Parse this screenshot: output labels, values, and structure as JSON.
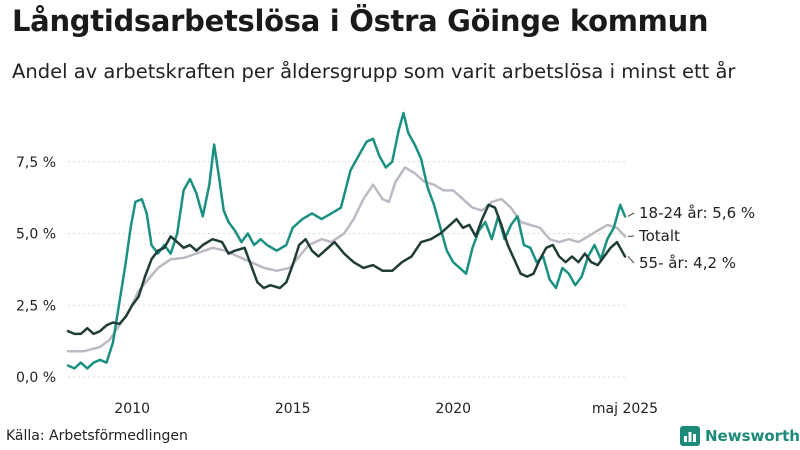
{
  "header": {
    "title": "Långtidsarbetslösa i Östra Göinge kommun",
    "subtitle": "Andel av arbetskraften per åldersgrupp som varit arbetslösa i minst ett år"
  },
  "footer": {
    "source": "Källa: Arbetsförmedlingen",
    "brand": "Newsworthy"
  },
  "chart_data": {
    "type": "line",
    "title": "Långtidsarbetslösa i Östra Göinge kommun",
    "subtitle": "Andel av arbetskraften per åldersgrupp som varit arbetslösa i minst ett år",
    "xlabel": "",
    "ylabel": "",
    "xlim": [
      2008.0,
      2025.35
    ],
    "ylim": [
      0,
      10
    ],
    "grid": true,
    "x_ticks": [
      {
        "value": 2010,
        "label": "2010"
      },
      {
        "value": 2015,
        "label": "2015"
      },
      {
        "value": 2020,
        "label": "2020"
      },
      {
        "value": 2025.35,
        "label": "maj 2025"
      }
    ],
    "y_ticks": [
      {
        "value": 0,
        "label": "0,0 %"
      },
      {
        "value": 2.5,
        "label": "2,5 %"
      },
      {
        "value": 5,
        "label": "5,0 %"
      },
      {
        "value": 7.5,
        "label": "7,5 %"
      }
    ],
    "series": [
      {
        "name": "Totalt",
        "end_label": "Totalt",
        "color": "#bdb9c4",
        "points": [
          [
            2008.0,
            0.9
          ],
          [
            2008.5,
            0.9
          ],
          [
            2009.0,
            1.05
          ],
          [
            2009.3,
            1.3
          ],
          [
            2009.6,
            1.8
          ],
          [
            2009.9,
            2.3
          ],
          [
            2010.2,
            3.0
          ],
          [
            2010.5,
            3.4
          ],
          [
            2010.8,
            3.8
          ],
          [
            2011.2,
            4.1
          ],
          [
            2011.6,
            4.15
          ],
          [
            2012.0,
            4.3
          ],
          [
            2012.5,
            4.5
          ],
          [
            2012.9,
            4.4
          ],
          [
            2013.3,
            4.2
          ],
          [
            2013.7,
            4.0
          ],
          [
            2014.1,
            3.8
          ],
          [
            2014.5,
            3.7
          ],
          [
            2014.9,
            3.8
          ],
          [
            2015.2,
            4.2
          ],
          [
            2015.5,
            4.6
          ],
          [
            2015.9,
            4.8
          ],
          [
            2016.2,
            4.7
          ],
          [
            2016.6,
            5.0
          ],
          [
            2016.9,
            5.5
          ],
          [
            2017.2,
            6.2
          ],
          [
            2017.5,
            6.7
          ],
          [
            2017.8,
            6.2
          ],
          [
            2018.0,
            6.1
          ],
          [
            2018.2,
            6.8
          ],
          [
            2018.5,
            7.3
          ],
          [
            2018.8,
            7.1
          ],
          [
            2019.1,
            6.8
          ],
          [
            2019.4,
            6.7
          ],
          [
            2019.7,
            6.5
          ],
          [
            2020.0,
            6.5
          ],
          [
            2020.3,
            6.2
          ],
          [
            2020.6,
            5.9
          ],
          [
            2020.9,
            5.8
          ],
          [
            2021.2,
            6.1
          ],
          [
            2021.5,
            6.2
          ],
          [
            2021.8,
            5.9
          ],
          [
            2022.1,
            5.4
          ],
          [
            2022.4,
            5.3
          ],
          [
            2022.7,
            5.2
          ],
          [
            2023.0,
            4.8
          ],
          [
            2023.3,
            4.7
          ],
          [
            2023.6,
            4.8
          ],
          [
            2023.9,
            4.7
          ],
          [
            2024.2,
            4.9
          ],
          [
            2024.5,
            5.1
          ],
          [
            2024.8,
            5.3
          ],
          [
            2025.1,
            5.2
          ],
          [
            2025.35,
            4.9
          ]
        ]
      },
      {
        "name": "18-24 år",
        "end_label": "18-24 år: 5,6 %",
        "color": "#1a9080",
        "points": [
          [
            2008.0,
            0.4
          ],
          [
            2008.2,
            0.3
          ],
          [
            2008.4,
            0.5
          ],
          [
            2008.6,
            0.3
          ],
          [
            2008.8,
            0.5
          ],
          [
            2009.0,
            0.6
          ],
          [
            2009.2,
            0.5
          ],
          [
            2009.4,
            1.2
          ],
          [
            2009.6,
            2.6
          ],
          [
            2009.8,
            4.0
          ],
          [
            2009.95,
            5.2
          ],
          [
            2010.1,
            6.1
          ],
          [
            2010.3,
            6.2
          ],
          [
            2010.45,
            5.7
          ],
          [
            2010.6,
            4.6
          ],
          [
            2010.8,
            4.3
          ],
          [
            2011.0,
            4.6
          ],
          [
            2011.2,
            4.3
          ],
          [
            2011.4,
            5.0
          ],
          [
            2011.6,
            6.5
          ],
          [
            2011.8,
            6.9
          ],
          [
            2012.0,
            6.4
          ],
          [
            2012.2,
            5.6
          ],
          [
            2012.4,
            6.7
          ],
          [
            2012.55,
            8.1
          ],
          [
            2012.7,
            7.0
          ],
          [
            2012.85,
            5.8
          ],
          [
            2013.0,
            5.4
          ],
          [
            2013.2,
            5.1
          ],
          [
            2013.4,
            4.7
          ],
          [
            2013.6,
            5.0
          ],
          [
            2013.8,
            4.6
          ],
          [
            2014.0,
            4.8
          ],
          [
            2014.2,
            4.6
          ],
          [
            2014.5,
            4.4
          ],
          [
            2014.8,
            4.6
          ],
          [
            2015.0,
            5.2
          ],
          [
            2015.3,
            5.5
          ],
          [
            2015.6,
            5.7
          ],
          [
            2015.9,
            5.5
          ],
          [
            2016.2,
            5.7
          ],
          [
            2016.5,
            5.9
          ],
          [
            2016.8,
            7.2
          ],
          [
            2017.1,
            7.8
          ],
          [
            2017.3,
            8.2
          ],
          [
            2017.5,
            8.3
          ],
          [
            2017.7,
            7.7
          ],
          [
            2017.9,
            7.3
          ],
          [
            2018.1,
            7.5
          ],
          [
            2018.3,
            8.6
          ],
          [
            2018.45,
            9.2
          ],
          [
            2018.6,
            8.5
          ],
          [
            2018.8,
            8.1
          ],
          [
            2019.0,
            7.6
          ],
          [
            2019.2,
            6.6
          ],
          [
            2019.4,
            6.0
          ],
          [
            2019.6,
            5.2
          ],
          [
            2019.8,
            4.4
          ],
          [
            2020.0,
            4.0
          ],
          [
            2020.2,
            3.8
          ],
          [
            2020.4,
            3.6
          ],
          [
            2020.6,
            4.5
          ],
          [
            2020.8,
            5.1
          ],
          [
            2021.0,
            5.4
          ],
          [
            2021.2,
            4.8
          ],
          [
            2021.4,
            5.6
          ],
          [
            2021.6,
            4.8
          ],
          [
            2021.8,
            5.3
          ],
          [
            2022.0,
            5.6
          ],
          [
            2022.2,
            4.6
          ],
          [
            2022.4,
            4.5
          ],
          [
            2022.6,
            4.0
          ],
          [
            2022.8,
            4.2
          ],
          [
            2023.0,
            3.4
          ],
          [
            2023.2,
            3.1
          ],
          [
            2023.4,
            3.8
          ],
          [
            2023.6,
            3.6
          ],
          [
            2023.8,
            3.2
          ],
          [
            2024.0,
            3.5
          ],
          [
            2024.2,
            4.2
          ],
          [
            2024.4,
            4.6
          ],
          [
            2024.6,
            4.1
          ],
          [
            2024.8,
            4.8
          ],
          [
            2025.0,
            5.2
          ],
          [
            2025.2,
            6.0
          ],
          [
            2025.35,
            5.6
          ]
        ]
      },
      {
        "name": "55- år",
        "end_label": "55- år: 4,2 %",
        "color": "#1f3d36",
        "points": [
          [
            2008.0,
            1.6
          ],
          [
            2008.2,
            1.5
          ],
          [
            2008.4,
            1.5
          ],
          [
            2008.6,
            1.7
          ],
          [
            2008.8,
            1.5
          ],
          [
            2009.0,
            1.6
          ],
          [
            2009.2,
            1.8
          ],
          [
            2009.4,
            1.9
          ],
          [
            2009.6,
            1.85
          ],
          [
            2009.8,
            2.1
          ],
          [
            2010.0,
            2.5
          ],
          [
            2010.2,
            2.8
          ],
          [
            2010.4,
            3.5
          ],
          [
            2010.6,
            4.1
          ],
          [
            2010.8,
            4.4
          ],
          [
            2011.0,
            4.5
          ],
          [
            2011.2,
            4.9
          ],
          [
            2011.4,
            4.7
          ],
          [
            2011.6,
            4.5
          ],
          [
            2011.8,
            4.6
          ],
          [
            2012.0,
            4.4
          ],
          [
            2012.2,
            4.6
          ],
          [
            2012.5,
            4.8
          ],
          [
            2012.8,
            4.7
          ],
          [
            2013.0,
            4.3
          ],
          [
            2013.2,
            4.4
          ],
          [
            2013.5,
            4.5
          ],
          [
            2013.7,
            3.9
          ],
          [
            2013.9,
            3.3
          ],
          [
            2014.1,
            3.1
          ],
          [
            2014.3,
            3.2
          ],
          [
            2014.6,
            3.1
          ],
          [
            2014.8,
            3.3
          ],
          [
            2015.0,
            3.9
          ],
          [
            2015.2,
            4.6
          ],
          [
            2015.4,
            4.8
          ],
          [
            2015.6,
            4.4
          ],
          [
            2015.8,
            4.2
          ],
          [
            2016.0,
            4.4
          ],
          [
            2016.3,
            4.7
          ],
          [
            2016.6,
            4.3
          ],
          [
            2016.9,
            4.0
          ],
          [
            2017.2,
            3.8
          ],
          [
            2017.5,
            3.9
          ],
          [
            2017.8,
            3.7
          ],
          [
            2018.1,
            3.7
          ],
          [
            2018.4,
            4.0
          ],
          [
            2018.7,
            4.2
          ],
          [
            2019.0,
            4.7
          ],
          [
            2019.3,
            4.8
          ],
          [
            2019.6,
            5.0
          ],
          [
            2019.9,
            5.3
          ],
          [
            2020.1,
            5.5
          ],
          [
            2020.3,
            5.2
          ],
          [
            2020.5,
            5.3
          ],
          [
            2020.7,
            4.9
          ],
          [
            2020.9,
            5.5
          ],
          [
            2021.1,
            6.0
          ],
          [
            2021.3,
            5.9
          ],
          [
            2021.5,
            5.3
          ],
          [
            2021.7,
            4.6
          ],
          [
            2021.9,
            4.1
          ],
          [
            2022.1,
            3.6
          ],
          [
            2022.3,
            3.5
          ],
          [
            2022.5,
            3.6
          ],
          [
            2022.7,
            4.1
          ],
          [
            2022.9,
            4.5
          ],
          [
            2023.1,
            4.6
          ],
          [
            2023.3,
            4.2
          ],
          [
            2023.5,
            4.0
          ],
          [
            2023.7,
            4.2
          ],
          [
            2023.9,
            4.0
          ],
          [
            2024.1,
            4.3
          ],
          [
            2024.3,
            4.0
          ],
          [
            2024.5,
            3.9
          ],
          [
            2024.7,
            4.2
          ],
          [
            2024.9,
            4.5
          ],
          [
            2025.1,
            4.7
          ],
          [
            2025.35,
            4.2
          ]
        ]
      }
    ]
  }
}
